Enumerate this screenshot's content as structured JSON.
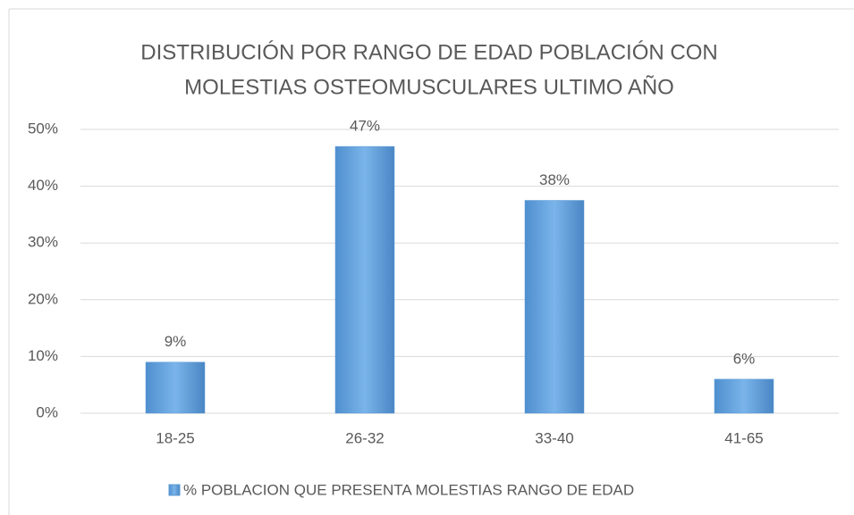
{
  "chart_data": {
    "type": "bar",
    "title": [
      "DISTRIBUCIÓN POR RANGO DE EDAD POBLACIÓN CON",
      "MOLESTIAS OSTEOMUSCULARES ULTIMO AÑO"
    ],
    "categories": [
      "18-25",
      "26-32",
      "33-40",
      "41-65"
    ],
    "series": [
      {
        "name": "% POBLACION QUE PRESENTA MOLESTIAS  RANGO DE EDAD",
        "color": "#5b9bd5",
        "values": [
          9,
          47,
          37.5,
          6
        ],
        "value_labels": [
          "9%",
          "47%",
          "38%",
          "6%"
        ]
      }
    ],
    "ylim": [
      0,
      50
    ],
    "yticks": [
      {
        "value": 0,
        "label": "0%"
      },
      {
        "value": 10,
        "label": "10%"
      },
      {
        "value": 20,
        "label": "20%"
      },
      {
        "value": 30,
        "label": "30%"
      },
      {
        "value": 40,
        "label": "40%"
      },
      {
        "value": 50,
        "label": "50%"
      }
    ],
    "grid": true,
    "legend": "bottom"
  }
}
